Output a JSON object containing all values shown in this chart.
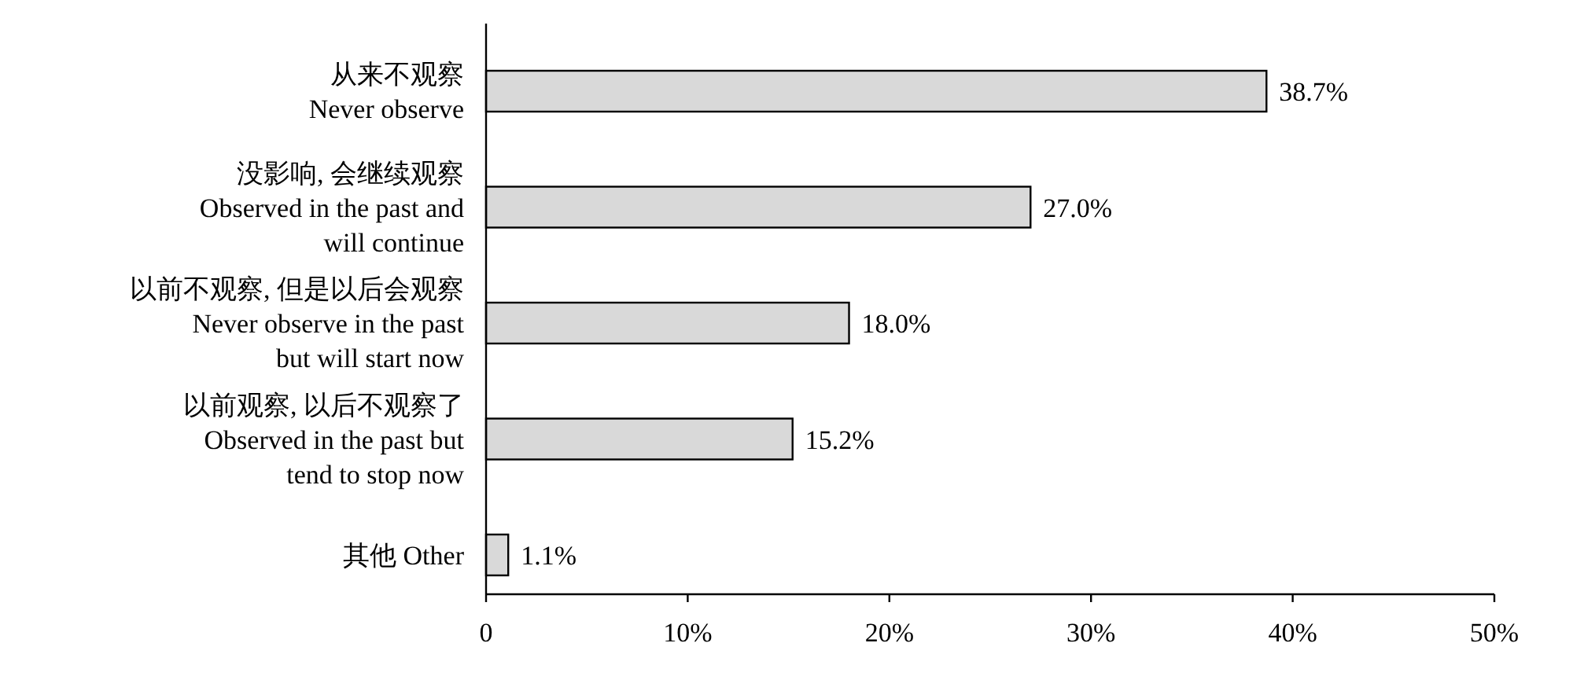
{
  "chart_data": {
    "type": "bar",
    "orientation": "horizontal",
    "categories": [
      "从来不观察\nNever observe",
      "没影响, 会继续观察\nObserved in the past and\nwill continue",
      "以前不观察, 但是以后会观察\nNever observe in the past\nbut will start now",
      "以前观察, 以后不观察了\nObserved in the past but\ntend to stop now",
      "其他 Other"
    ],
    "values": [
      38.7,
      27.0,
      18.0,
      15.2,
      1.1
    ],
    "value_labels": [
      "38.7%",
      "27.0%",
      "18.0%",
      "15.2%",
      "1.1%"
    ],
    "color": "#d9d9d9",
    "xlim": [
      0,
      50
    ],
    "xticks": [
      0,
      {
        "value": 10,
        "label": "10%"
      },
      {
        "value": 20,
        "label": "20%"
      },
      {
        "value": 30,
        "label": "30%"
      },
      {
        "value": 40,
        "label": "40%"
      },
      {
        "value": 50,
        "label": "50%"
      }
    ],
    "grid": false
  }
}
